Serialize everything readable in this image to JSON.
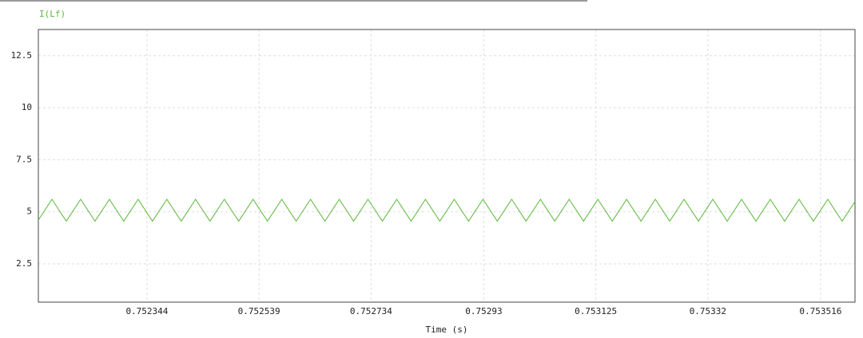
{
  "chart_data": {
    "type": "line",
    "xlabel": "Time (s)",
    "x": [
      0.752155,
      0.7521786,
      0.7522036,
      0.7522286,
      0.7522536,
      0.7522786,
      0.7523036,
      0.7523286,
      0.7523536,
      0.7523786,
      0.7524036,
      0.7524286,
      0.7524536,
      0.7524786,
      0.7525036,
      0.7525286,
      0.7525536,
      0.7525786,
      0.7526036,
      0.7526286,
      0.7526536,
      0.7526786,
      0.7527036,
      0.7527286,
      0.7527536,
      0.7527786,
      0.7528036,
      0.7528286,
      0.7528536,
      0.7528786,
      0.7529036,
      0.7529286,
      0.7529536,
      0.7529786,
      0.7530036,
      0.7530286,
      0.7530536,
      0.7530786,
      0.7531036,
      0.7531286,
      0.7531536,
      0.7531786,
      0.7532036,
      0.7532286,
      0.7532536,
      0.7532786,
      0.7533036,
      0.7533286,
      0.7533536,
      0.7533786,
      0.7534036,
      0.7534286,
      0.7534536,
      0.7534786,
      0.7535036,
      0.7535286,
      0.7535536,
      0.753576
    ],
    "series": [
      {
        "name": "I(Lf)",
        "color": "#5cb83a",
        "values": [
          4.6,
          5.6,
          4.55,
          5.6,
          4.55,
          5.6,
          4.55,
          5.6,
          4.55,
          5.6,
          4.55,
          5.6,
          4.55,
          5.6,
          4.55,
          5.6,
          4.55,
          5.6,
          4.55,
          5.6,
          4.55,
          5.6,
          4.55,
          5.6,
          4.55,
          5.6,
          4.55,
          5.6,
          4.55,
          5.6,
          4.55,
          5.6,
          4.55,
          5.6,
          4.55,
          5.6,
          4.55,
          5.6,
          4.55,
          5.6,
          4.55,
          5.6,
          4.55,
          5.6,
          4.55,
          5.6,
          4.55,
          5.6,
          4.55,
          5.6,
          4.55,
          5.6,
          4.55,
          5.6,
          4.55,
          5.6,
          4.55,
          5.49
        ]
      }
    ],
    "xlim": [
      0.752155,
      0.753576
    ],
    "xticks": [
      0.752344,
      0.752539,
      0.752734,
      0.75293,
      0.753125,
      0.75332,
      0.753516
    ],
    "ylim": [
      0.66,
      13.76
    ],
    "yticks": [
      2.5,
      5,
      7.5,
      10,
      12.5
    ],
    "grid": true
  }
}
